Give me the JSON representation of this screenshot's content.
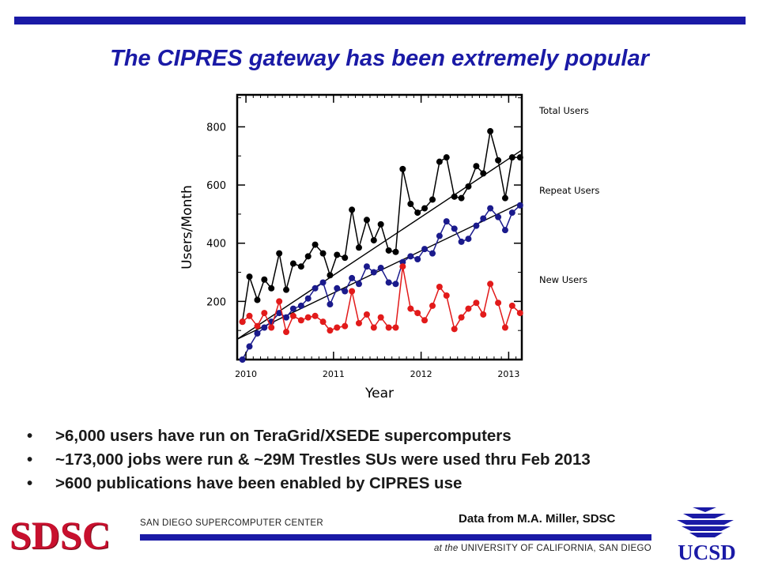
{
  "slide": {
    "title": "The CIPRES gateway has been extremely popular",
    "bullets": [
      ">6,000 users have run on TeraGrid/XSEDE supercomputers",
      "~173,000 jobs were run & ~29M Trestles SUs were used thru Feb 2013",
      ">600 publications have been enabled by CIPRES use"
    ],
    "bullet_glyph": "•",
    "credit": "Data from M.A. Miller, SDSC",
    "accent_color": "#1a1aa6"
  },
  "footer": {
    "sdsc_logo": "SDSC",
    "sdsc_name": "SAN DIEGO SUPERCOMPUTER CENTER",
    "at_the": "at the",
    "university": "UNIVERSITY OF CALIFORNIA, SAN DIEGO",
    "ucsd_logo": "UCSD"
  },
  "chart_data": {
    "type": "line",
    "title": "",
    "xlabel": "Year",
    "ylabel": "Users/Month",
    "xlim": [
      2009.9,
      2013.15
    ],
    "ylim": [
      0,
      910
    ],
    "x_ticks": [
      2010,
      2011,
      2012,
      2013
    ],
    "x_tick_labels": [
      "2010",
      "2011",
      "2012",
      "2013"
    ],
    "y_ticks": [
      200,
      400,
      600,
      800
    ],
    "y_tick_labels": [
      "200",
      "400",
      "600",
      "800"
    ],
    "grid": false,
    "series": [
      {
        "name": "Total Users",
        "color": "#000000",
        "points": [
          [
            2009.96,
            130
          ],
          [
            2010.04,
            285
          ],
          [
            2010.13,
            205
          ],
          [
            2010.21,
            275
          ],
          [
            2010.29,
            245
          ],
          [
            2010.38,
            365
          ],
          [
            2010.46,
            240
          ],
          [
            2010.54,
            330
          ],
          [
            2010.63,
            320
          ],
          [
            2010.71,
            355
          ],
          [
            2010.79,
            395
          ],
          [
            2010.88,
            365
          ],
          [
            2010.96,
            290
          ],
          [
            2011.04,
            360
          ],
          [
            2011.13,
            350
          ],
          [
            2011.21,
            515
          ],
          [
            2011.29,
            385
          ],
          [
            2011.38,
            480
          ],
          [
            2011.46,
            410
          ],
          [
            2011.54,
            465
          ],
          [
            2011.63,
            375
          ],
          [
            2011.71,
            370
          ],
          [
            2011.79,
            655
          ],
          [
            2011.88,
            535
          ],
          [
            2011.96,
            505
          ],
          [
            2012.04,
            520
          ],
          [
            2012.13,
            550
          ],
          [
            2012.21,
            680
          ],
          [
            2012.29,
            695
          ],
          [
            2012.38,
            560
          ],
          [
            2012.46,
            555
          ],
          [
            2012.54,
            595
          ],
          [
            2012.63,
            665
          ],
          [
            2012.71,
            640
          ],
          [
            2012.79,
            785
          ],
          [
            2012.88,
            685
          ],
          [
            2012.96,
            555
          ],
          [
            2013.04,
            695
          ],
          [
            2013.13,
            695
          ]
        ],
        "trend": [
          [
            2009.9,
            70
          ],
          [
            2013.15,
            720
          ]
        ]
      },
      {
        "name": "Repeat Users",
        "color": "#1a1a8c",
        "points": [
          [
            2009.96,
            0
          ],
          [
            2010.04,
            45
          ],
          [
            2010.13,
            90
          ],
          [
            2010.21,
            110
          ],
          [
            2010.29,
            130
          ],
          [
            2010.38,
            160
          ],
          [
            2010.46,
            145
          ],
          [
            2010.54,
            175
          ],
          [
            2010.63,
            185
          ],
          [
            2010.71,
            210
          ],
          [
            2010.79,
            245
          ],
          [
            2010.88,
            265
          ],
          [
            2010.96,
            190
          ],
          [
            2011.04,
            245
          ],
          [
            2011.13,
            235
          ],
          [
            2011.21,
            280
          ],
          [
            2011.29,
            260
          ],
          [
            2011.38,
            320
          ],
          [
            2011.46,
            300
          ],
          [
            2011.54,
            315
          ],
          [
            2011.63,
            265
          ],
          [
            2011.71,
            260
          ],
          [
            2011.79,
            335
          ],
          [
            2011.88,
            355
          ],
          [
            2011.96,
            345
          ],
          [
            2012.04,
            380
          ],
          [
            2012.13,
            365
          ],
          [
            2012.21,
            425
          ],
          [
            2012.29,
            475
          ],
          [
            2012.38,
            450
          ],
          [
            2012.46,
            405
          ],
          [
            2012.54,
            415
          ],
          [
            2012.63,
            460
          ],
          [
            2012.71,
            485
          ],
          [
            2012.79,
            520
          ],
          [
            2012.88,
            490
          ],
          [
            2012.96,
            445
          ],
          [
            2013.04,
            505
          ],
          [
            2013.13,
            530
          ]
        ],
        "trend": [
          [
            2009.9,
            70
          ],
          [
            2013.15,
            540
          ]
        ]
      },
      {
        "name": "New Users",
        "color": "#e21a1a",
        "points": [
          [
            2009.96,
            130
          ],
          [
            2010.04,
            150
          ],
          [
            2010.13,
            115
          ],
          [
            2010.21,
            160
          ],
          [
            2010.29,
            110
          ],
          [
            2010.38,
            200
          ],
          [
            2010.46,
            95
          ],
          [
            2010.54,
            150
          ],
          [
            2010.63,
            135
          ],
          [
            2010.71,
            145
          ],
          [
            2010.79,
            150
          ],
          [
            2010.88,
            130
          ],
          [
            2010.96,
            100
          ],
          [
            2011.04,
            110
          ],
          [
            2011.13,
            115
          ],
          [
            2011.21,
            235
          ],
          [
            2011.29,
            125
          ],
          [
            2011.38,
            155
          ],
          [
            2011.46,
            110
          ],
          [
            2011.54,
            145
          ],
          [
            2011.63,
            110
          ],
          [
            2011.71,
            110
          ],
          [
            2011.79,
            320
          ],
          [
            2011.88,
            175
          ],
          [
            2011.96,
            160
          ],
          [
            2012.04,
            135
          ],
          [
            2012.13,
            185
          ],
          [
            2012.21,
            250
          ],
          [
            2012.29,
            220
          ],
          [
            2012.38,
            105
          ],
          [
            2012.46,
            145
          ],
          [
            2012.54,
            175
          ],
          [
            2012.63,
            195
          ],
          [
            2012.71,
            155
          ],
          [
            2012.79,
            260
          ],
          [
            2012.88,
            195
          ],
          [
            2012.96,
            110
          ],
          [
            2013.04,
            185
          ],
          [
            2013.13,
            160
          ]
        ]
      }
    ]
  }
}
